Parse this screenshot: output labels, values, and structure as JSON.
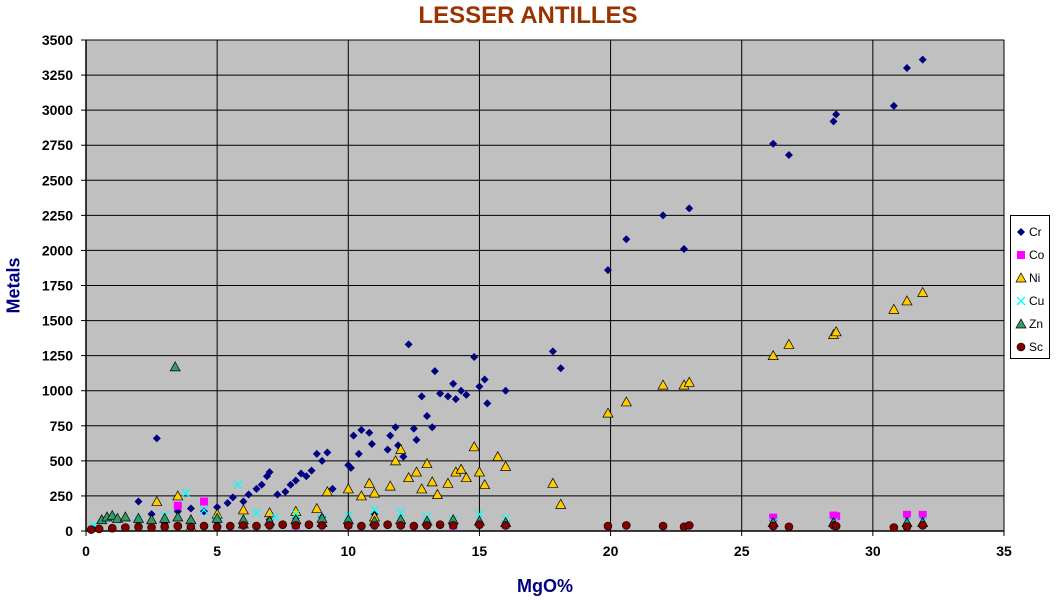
{
  "chart_data": {
    "type": "scatter",
    "title": "LESSER ANTILLES",
    "xlabel": "MgO%",
    "ylabel": "Metals",
    "xlim": [
      0,
      35
    ],
    "ylim": [
      0,
      3500
    ],
    "x_ticks": [
      "0",
      "5",
      "10",
      "15",
      "20",
      "25",
      "30",
      "35"
    ],
    "y_ticks": [
      "0",
      "250",
      "500",
      "750",
      "1000",
      "1250",
      "1500",
      "1750",
      "2000",
      "2250",
      "2500",
      "2750",
      "3000",
      "3250",
      "3500"
    ],
    "grid": "major lines on both axes",
    "legend": "right",
    "plot_background": "#c0c0c0",
    "series": [
      {
        "name": "Cr",
        "marker": "diamond",
        "color": "#000080",
        "points": [
          [
            2.7,
            660
          ],
          [
            2.0,
            210
          ],
          [
            2.5,
            120
          ],
          [
            3.5,
            140
          ],
          [
            4.0,
            160
          ],
          [
            4.5,
            140
          ],
          [
            5.0,
            170
          ],
          [
            5.4,
            200
          ],
          [
            5.6,
            240
          ],
          [
            6.0,
            210
          ],
          [
            6.2,
            260
          ],
          [
            6.5,
            300
          ],
          [
            6.7,
            330
          ],
          [
            6.9,
            390
          ],
          [
            7.0,
            420
          ],
          [
            7.3,
            260
          ],
          [
            7.6,
            280
          ],
          [
            7.8,
            330
          ],
          [
            8.0,
            360
          ],
          [
            8.2,
            410
          ],
          [
            8.4,
            390
          ],
          [
            8.6,
            430
          ],
          [
            8.8,
            550
          ],
          [
            9.0,
            500
          ],
          [
            9.2,
            560
          ],
          [
            9.4,
            300
          ],
          [
            10.0,
            470
          ],
          [
            10.1,
            450
          ],
          [
            10.2,
            680
          ],
          [
            10.4,
            550
          ],
          [
            10.5,
            720
          ],
          [
            10.8,
            700
          ],
          [
            10.9,
            620
          ],
          [
            11.5,
            580
          ],
          [
            11.6,
            680
          ],
          [
            11.8,
            740
          ],
          [
            11.9,
            610
          ],
          [
            12.1,
            530
          ],
          [
            12.3,
            1330
          ],
          [
            12.5,
            730
          ],
          [
            12.6,
            650
          ],
          [
            12.8,
            960
          ],
          [
            13.0,
            820
          ],
          [
            13.2,
            740
          ],
          [
            13.3,
            1140
          ],
          [
            13.5,
            980
          ],
          [
            13.8,
            960
          ],
          [
            14.0,
            1050
          ],
          [
            14.1,
            940
          ],
          [
            14.3,
            1000
          ],
          [
            14.5,
            970
          ],
          [
            14.8,
            1240
          ],
          [
            15.0,
            1030
          ],
          [
            15.2,
            1080
          ],
          [
            15.3,
            910
          ],
          [
            16.0,
            1000
          ],
          [
            17.8,
            1280
          ],
          [
            18.1,
            1160
          ],
          [
            19.9,
            1860
          ],
          [
            20.6,
            2080
          ],
          [
            22.0,
            2250
          ],
          [
            22.8,
            2010
          ],
          [
            23.0,
            2300
          ],
          [
            26.2,
            2760
          ],
          [
            26.8,
            2680
          ],
          [
            28.5,
            2920
          ],
          [
            28.6,
            2970
          ],
          [
            30.8,
            3030
          ],
          [
            31.3,
            3300
          ],
          [
            31.9,
            3360
          ],
          [
            3.0,
            50
          ],
          [
            5.0,
            60
          ],
          [
            7.0,
            80
          ],
          [
            8.0,
            90
          ],
          [
            9.0,
            100
          ],
          [
            11.0,
            120
          ]
        ]
      },
      {
        "name": "Co",
        "marker": "square",
        "color": "#ff00ff",
        "points": [
          [
            3.5,
            180
          ],
          [
            4.5,
            210
          ],
          [
            26.2,
            95
          ],
          [
            28.5,
            110
          ],
          [
            28.6,
            105
          ],
          [
            31.3,
            115
          ],
          [
            31.9,
            115
          ],
          [
            8.0,
            40
          ],
          [
            10.0,
            45
          ],
          [
            12.0,
            50
          ],
          [
            14.0,
            40
          ],
          [
            16.0,
            45
          ]
        ]
      },
      {
        "name": "Ni",
        "marker": "triangle",
        "color": "#ffcc00",
        "points": [
          [
            2.7,
            210
          ],
          [
            3.5,
            250
          ],
          [
            5.0,
            120
          ],
          [
            6.0,
            150
          ],
          [
            7.0,
            130
          ],
          [
            8.0,
            140
          ],
          [
            8.8,
            160
          ],
          [
            9.2,
            280
          ],
          [
            10.0,
            300
          ],
          [
            10.5,
            250
          ],
          [
            10.8,
            340
          ],
          [
            11.0,
            270
          ],
          [
            11.6,
            320
          ],
          [
            11.8,
            500
          ],
          [
            12.0,
            580
          ],
          [
            12.3,
            380
          ],
          [
            12.6,
            420
          ],
          [
            12.8,
            300
          ],
          [
            13.0,
            480
          ],
          [
            13.2,
            350
          ],
          [
            13.4,
            260
          ],
          [
            13.8,
            340
          ],
          [
            14.1,
            420
          ],
          [
            14.3,
            440
          ],
          [
            14.5,
            380
          ],
          [
            14.8,
            600
          ],
          [
            15.0,
            420
          ],
          [
            15.2,
            330
          ],
          [
            15.7,
            530
          ],
          [
            16.0,
            460
          ],
          [
            17.8,
            340
          ],
          [
            18.1,
            190
          ],
          [
            19.9,
            840
          ],
          [
            20.6,
            920
          ],
          [
            22.0,
            1040
          ],
          [
            22.8,
            1040
          ],
          [
            23.0,
            1060
          ],
          [
            26.2,
            1250
          ],
          [
            26.8,
            1330
          ],
          [
            28.5,
            1400
          ],
          [
            28.6,
            1420
          ],
          [
            30.8,
            1580
          ],
          [
            31.3,
            1640
          ],
          [
            31.9,
            1700
          ],
          [
            4.0,
            30
          ],
          [
            6.0,
            50
          ],
          [
            9.0,
            60
          ],
          [
            11.0,
            100
          ]
        ]
      },
      {
        "name": "Cu",
        "marker": "x",
        "color": "#00ffff",
        "points": [
          [
            0.3,
            40
          ],
          [
            1.0,
            90
          ],
          [
            2.0,
            80
          ],
          [
            3.0,
            110
          ],
          [
            3.8,
            270
          ],
          [
            4.5,
            150
          ],
          [
            5.0,
            80
          ],
          [
            5.8,
            330
          ],
          [
            6.5,
            130
          ],
          [
            7.2,
            100
          ],
          [
            8.0,
            120
          ],
          [
            9.0,
            90
          ],
          [
            10.0,
            110
          ],
          [
            11.0,
            150
          ],
          [
            12.0,
            130
          ],
          [
            13.0,
            100
          ],
          [
            14.0,
            80
          ],
          [
            15.0,
            120
          ],
          [
            16.0,
            90
          ],
          [
            26.2,
            60
          ],
          [
            28.5,
            60
          ],
          [
            31.3,
            70
          ],
          [
            31.9,
            70
          ]
        ]
      },
      {
        "name": "Zn",
        "marker": "triangle",
        "color": "#339966",
        "points": [
          [
            3.4,
            1170
          ],
          [
            0.6,
            80
          ],
          [
            0.8,
            100
          ],
          [
            1.0,
            110
          ],
          [
            1.2,
            90
          ],
          [
            1.5,
            100
          ],
          [
            2.0,
            90
          ],
          [
            2.5,
            80
          ],
          [
            3.0,
            90
          ],
          [
            3.5,
            100
          ],
          [
            4.0,
            80
          ],
          [
            5.0,
            90
          ],
          [
            6.0,
            80
          ],
          [
            7.0,
            70
          ],
          [
            8.0,
            80
          ],
          [
            9.0,
            90
          ],
          [
            10.0,
            80
          ],
          [
            11.0,
            70
          ],
          [
            12.0,
            80
          ],
          [
            13.0,
            70
          ],
          [
            14.0,
            80
          ],
          [
            15.0,
            70
          ],
          [
            16.0,
            60
          ],
          [
            26.2,
            60
          ],
          [
            28.5,
            60
          ],
          [
            31.3,
            60
          ],
          [
            31.9,
            60
          ]
        ]
      },
      {
        "name": "Sc",
        "marker": "circle",
        "color": "#800000",
        "points": [
          [
            0.2,
            10
          ],
          [
            0.5,
            15
          ],
          [
            1.0,
            20
          ],
          [
            1.5,
            25
          ],
          [
            2.0,
            30
          ],
          [
            2.5,
            25
          ],
          [
            3.0,
            30
          ],
          [
            3.5,
            35
          ],
          [
            4.0,
            30
          ],
          [
            4.5,
            35
          ],
          [
            5.0,
            30
          ],
          [
            5.5,
            35
          ],
          [
            6.0,
            40
          ],
          [
            6.5,
            35
          ],
          [
            7.0,
            40
          ],
          [
            7.5,
            45
          ],
          [
            8.0,
            40
          ],
          [
            8.5,
            45
          ],
          [
            9.0,
            40
          ],
          [
            10.0,
            40
          ],
          [
            10.5,
            35
          ],
          [
            11.0,
            40
          ],
          [
            11.5,
            45
          ],
          [
            12.0,
            40
          ],
          [
            12.5,
            35
          ],
          [
            13.0,
            40
          ],
          [
            13.5,
            45
          ],
          [
            14.0,
            40
          ],
          [
            15.0,
            45
          ],
          [
            16.0,
            40
          ],
          [
            19.9,
            35
          ],
          [
            20.6,
            40
          ],
          [
            22.0,
            35
          ],
          [
            22.8,
            30
          ],
          [
            23.0,
            40
          ],
          [
            26.2,
            35
          ],
          [
            26.8,
            30
          ],
          [
            28.5,
            40
          ],
          [
            28.6,
            35
          ],
          [
            30.8,
            25
          ],
          [
            31.3,
            30
          ],
          [
            31.9,
            40
          ]
        ]
      }
    ]
  }
}
